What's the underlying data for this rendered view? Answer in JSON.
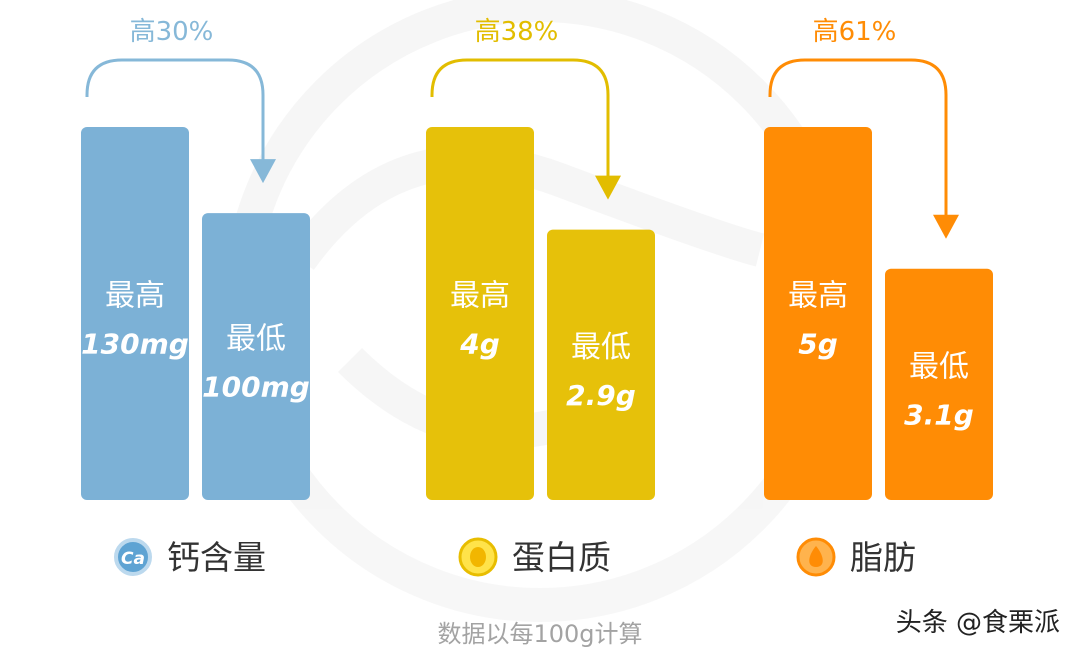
{
  "chart_data": [
    {
      "type": "bar",
      "name": "钙含量",
      "color": "#7cb1d6",
      "arrow_color": "#86b8d8",
      "icon": "calcium-icon",
      "icon_text": "Ca",
      "difference_label": "高30%",
      "bars": [
        {
          "label": "最高",
          "value": 130,
          "value_text": "130mg"
        },
        {
          "label": "最低",
          "value": 100,
          "value_text": "100mg"
        }
      ]
    },
    {
      "type": "bar",
      "name": "蛋白质",
      "color": "#e6c10a",
      "arrow_color": "#e2bd00",
      "icon": "protein-egg-icon",
      "difference_label": "高38%",
      "bars": [
        {
          "label": "最高",
          "value": 4,
          "value_text": "4g"
        },
        {
          "label": "最低",
          "value": 2.9,
          "value_text": "2.9g"
        }
      ]
    },
    {
      "type": "bar",
      "name": "脂肪",
      "color": "#ff8c05",
      "arrow_color": "#ff8c05",
      "icon": "fat-oil-drop-icon",
      "difference_label": "高61%",
      "bars": [
        {
          "label": "最高",
          "value": 5,
          "value_text": "5g"
        },
        {
          "label": "最低",
          "value": 3.1,
          "value_text": "3.1g"
        }
      ]
    }
  ],
  "footnote": "数据以每100g计算",
  "watermark": "头条 @食栗派"
}
